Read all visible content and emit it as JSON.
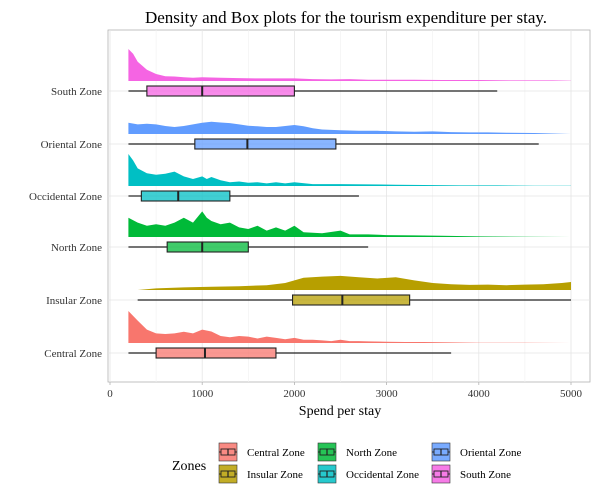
{
  "chart_data": {
    "type": "density-box",
    "title": "Density and Box plots for the tourism expenditure per stay.",
    "xlabel": "Spend per stay",
    "xlim": [
      0,
      5000
    ],
    "xticks": [
      0,
      1000,
      2000,
      3000,
      4000,
      5000
    ],
    "grid": true,
    "legend": {
      "title": "Zones",
      "position": "bottom"
    },
    "series": [
      {
        "name": "Central Zone",
        "color": "#F8766D",
        "box": {
          "whisker_low": 200,
          "q1": 500,
          "median": 1030,
          "q3": 1800,
          "whisker_high": 3700
        },
        "density": [
          [
            200,
            1.0
          ],
          [
            300,
            0.7
          ],
          [
            400,
            0.42
          ],
          [
            500,
            0.3
          ],
          [
            600,
            0.28
          ],
          [
            700,
            0.3
          ],
          [
            800,
            0.35
          ],
          [
            900,
            0.3
          ],
          [
            1000,
            0.42
          ],
          [
            1100,
            0.36
          ],
          [
            1200,
            0.22
          ],
          [
            1300,
            0.18
          ],
          [
            1400,
            0.22
          ],
          [
            1500,
            0.2
          ],
          [
            1600,
            0.14
          ],
          [
            1700,
            0.2
          ],
          [
            1800,
            0.16
          ],
          [
            1900,
            0.12
          ],
          [
            2000,
            0.16
          ],
          [
            2100,
            0.1
          ],
          [
            2200,
            0.1
          ],
          [
            2300,
            0.08
          ],
          [
            2400,
            0.06
          ],
          [
            2500,
            0.1
          ],
          [
            2600,
            0.06
          ],
          [
            2700,
            0.06
          ],
          [
            2800,
            0.05
          ],
          [
            3000,
            0.04
          ],
          [
            3200,
            0.03
          ],
          [
            3400,
            0.03
          ],
          [
            3700,
            0.02
          ],
          [
            4000,
            0.01
          ],
          [
            4500,
            0.01
          ],
          [
            5000,
            0.0
          ]
        ]
      },
      {
        "name": "Insular Zone",
        "color": "#B79F00",
        "box": {
          "whisker_low": 300,
          "q1": 1980,
          "median": 2520,
          "q3": 3250,
          "whisker_high": 5000
        },
        "density": [
          [
            300,
            0.0
          ],
          [
            500,
            0.05
          ],
          [
            800,
            0.08
          ],
          [
            1100,
            0.1
          ],
          [
            1400,
            0.12
          ],
          [
            1700,
            0.15
          ],
          [
            1900,
            0.22
          ],
          [
            2100,
            0.38
          ],
          [
            2300,
            0.42
          ],
          [
            2500,
            0.44
          ],
          [
            2700,
            0.4
          ],
          [
            2900,
            0.36
          ],
          [
            3100,
            0.4
          ],
          [
            3300,
            0.3
          ],
          [
            3500,
            0.22
          ],
          [
            3700,
            0.18
          ],
          [
            3900,
            0.16
          ],
          [
            4100,
            0.17
          ],
          [
            4300,
            0.15
          ],
          [
            4500,
            0.17
          ],
          [
            4700,
            0.18
          ],
          [
            4900,
            0.22
          ],
          [
            5000,
            0.25
          ]
        ]
      },
      {
        "name": "North Zone",
        "color": "#00BA38",
        "box": {
          "whisker_low": 200,
          "q1": 620,
          "median": 1000,
          "q3": 1500,
          "whisker_high": 2800
        },
        "density": [
          [
            200,
            0.6
          ],
          [
            300,
            0.45
          ],
          [
            400,
            0.35
          ],
          [
            500,
            0.4
          ],
          [
            600,
            0.35
          ],
          [
            700,
            0.45
          ],
          [
            800,
            0.6
          ],
          [
            900,
            0.45
          ],
          [
            1000,
            0.8
          ],
          [
            1050,
            0.6
          ],
          [
            1100,
            0.5
          ],
          [
            1200,
            0.4
          ],
          [
            1300,
            0.45
          ],
          [
            1400,
            0.3
          ],
          [
            1500,
            0.25
          ],
          [
            1600,
            0.35
          ],
          [
            1700,
            0.2
          ],
          [
            1800,
            0.3
          ],
          [
            1900,
            0.2
          ],
          [
            2000,
            0.35
          ],
          [
            2100,
            0.15
          ],
          [
            2300,
            0.12
          ],
          [
            2500,
            0.2
          ],
          [
            2600,
            0.08
          ],
          [
            2800,
            0.08
          ],
          [
            3000,
            0.06
          ],
          [
            3300,
            0.05
          ],
          [
            3600,
            0.04
          ],
          [
            4000,
            0.02
          ],
          [
            4500,
            0.01
          ],
          [
            5000,
            0.0
          ]
        ]
      },
      {
        "name": "Occidental Zone",
        "color": "#00BFC4",
        "box": {
          "whisker_low": 200,
          "q1": 340,
          "median": 740,
          "q3": 1300,
          "whisker_high": 2700
        },
        "density": [
          [
            200,
            1.0
          ],
          [
            250,
            0.8
          ],
          [
            300,
            0.55
          ],
          [
            400,
            0.4
          ],
          [
            500,
            0.35
          ],
          [
            600,
            0.38
          ],
          [
            700,
            0.45
          ],
          [
            800,
            0.3
          ],
          [
            900,
            0.22
          ],
          [
            1000,
            0.3
          ],
          [
            1050,
            0.22
          ],
          [
            1100,
            0.28
          ],
          [
            1200,
            0.18
          ],
          [
            1300,
            0.12
          ],
          [
            1400,
            0.14
          ],
          [
            1500,
            0.1
          ],
          [
            1600,
            0.12
          ],
          [
            1700,
            0.08
          ],
          [
            1800,
            0.12
          ],
          [
            1900,
            0.08
          ],
          [
            2000,
            0.12
          ],
          [
            2200,
            0.06
          ],
          [
            2500,
            0.06
          ],
          [
            2800,
            0.05
          ],
          [
            3100,
            0.04
          ],
          [
            3400,
            0.03
          ],
          [
            3800,
            0.02
          ],
          [
            4200,
            0.02
          ],
          [
            4600,
            0.01
          ],
          [
            5000,
            0.01
          ]
        ]
      },
      {
        "name": "Oriental Zone",
        "color": "#619CFF",
        "box": {
          "whisker_low": 200,
          "q1": 920,
          "median": 1490,
          "q3": 2450,
          "whisker_high": 4650
        },
        "density": [
          [
            200,
            0.35
          ],
          [
            300,
            0.3
          ],
          [
            400,
            0.32
          ],
          [
            500,
            0.3
          ],
          [
            600,
            0.25
          ],
          [
            700,
            0.22
          ],
          [
            800,
            0.25
          ],
          [
            900,
            0.3
          ],
          [
            1000,
            0.35
          ],
          [
            1100,
            0.38
          ],
          [
            1200,
            0.36
          ],
          [
            1300,
            0.34
          ],
          [
            1400,
            0.3
          ],
          [
            1500,
            0.26
          ],
          [
            1600,
            0.24
          ],
          [
            1700,
            0.22
          ],
          [
            1800,
            0.22
          ],
          [
            1900,
            0.25
          ],
          [
            2000,
            0.28
          ],
          [
            2100,
            0.24
          ],
          [
            2200,
            0.18
          ],
          [
            2300,
            0.14
          ],
          [
            2500,
            0.12
          ],
          [
            2700,
            0.1
          ],
          [
            2900,
            0.1
          ],
          [
            3100,
            0.08
          ],
          [
            3300,
            0.07
          ],
          [
            3500,
            0.08
          ],
          [
            3700,
            0.06
          ],
          [
            3900,
            0.05
          ],
          [
            4100,
            0.05
          ],
          [
            4300,
            0.04
          ],
          [
            4600,
            0.03
          ],
          [
            5000,
            0.0
          ]
        ]
      },
      {
        "name": "South Zone",
        "color": "#F564E3",
        "box": {
          "whisker_low": 200,
          "q1": 400,
          "median": 1000,
          "q3": 2000,
          "whisker_high": 4200
        },
        "density": [
          [
            200,
            1.0
          ],
          [
            250,
            0.85
          ],
          [
            300,
            0.6
          ],
          [
            400,
            0.35
          ],
          [
            500,
            0.22
          ],
          [
            600,
            0.15
          ],
          [
            700,
            0.14
          ],
          [
            800,
            0.12
          ],
          [
            900,
            0.1
          ],
          [
            1000,
            0.12
          ],
          [
            1200,
            0.1
          ],
          [
            1400,
            0.09
          ],
          [
            1600,
            0.08
          ],
          [
            1800,
            0.08
          ],
          [
            2000,
            0.08
          ],
          [
            2200,
            0.06
          ],
          [
            2400,
            0.05
          ],
          [
            2600,
            0.06
          ],
          [
            2800,
            0.04
          ],
          [
            3000,
            0.04
          ],
          [
            3300,
            0.04
          ],
          [
            3600,
            0.03
          ],
          [
            4000,
            0.03
          ],
          [
            4400,
            0.02
          ],
          [
            4800,
            0.02
          ],
          [
            5000,
            0.01
          ]
        ]
      }
    ]
  }
}
